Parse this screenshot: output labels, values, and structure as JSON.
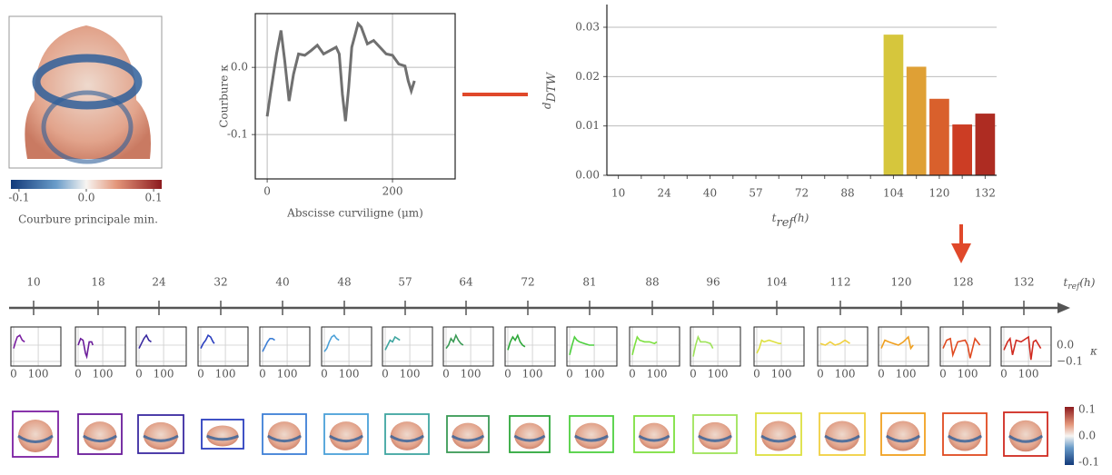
{
  "chart_data": [
    {
      "type": "colorbar",
      "label": "Courbure principale min.",
      "clim": [
        -0.112,
        0.112
      ],
      "ticks": [
        {
          "value": -0.1,
          "label": "-0.1"
        },
        {
          "value": 0,
          "label": "0.0"
        },
        {
          "value": 0.1,
          "label": "0.1"
        }
      ]
    },
    {
      "type": "line",
      "xlabel": "Abscisse curviligne (μm)",
      "ylabel": "Courbure κ",
      "color": "#707070",
      "xlim": [
        -19,
        300
      ],
      "ylim": [
        -0.166,
        0.08
      ],
      "xticks": [
        0,
        200
      ],
      "yticks": [
        {
          "value": 0,
          "label": "0.0"
        },
        {
          "value": -0.1,
          "label": "-0.1"
        }
      ],
      "grid": true,
      "x": [
        0,
        5,
        15,
        22,
        28,
        35,
        42,
        50,
        60,
        70,
        80,
        90,
        100,
        110,
        115,
        120,
        125,
        130,
        135,
        145,
        150,
        160,
        170,
        180,
        190,
        200,
        210,
        220,
        225,
        230,
        235
      ],
      "values": [
        -0.073,
        -0.04,
        0.02,
        0.055,
        0.01,
        -0.05,
        -0.01,
        0.02,
        0.018,
        0.025,
        0.033,
        0.02,
        0.025,
        0.03,
        0.02,
        -0.04,
        -0.08,
        -0.03,
        0.03,
        0.065,
        0.06,
        0.035,
        0.04,
        0.03,
        0.02,
        0.018,
        0.005,
        0.002,
        -0.02,
        -0.035,
        -0.02
      ]
    },
    {
      "type": "bar",
      "ylabel": "d",
      "ylabel_subscript": "DTW",
      "xlabel": "t",
      "xlabel_subscript": "ref",
      "xlabel_suffix": "(h)",
      "categories": [
        "10",
        null,
        "24",
        null,
        "40",
        null,
        "57",
        null,
        "72",
        null,
        "88",
        null,
        "104",
        null,
        "120",
        null,
        "132"
      ],
      "values": [
        0,
        0,
        0,
        0,
        0,
        0,
        0,
        0,
        0,
        0,
        0,
        0,
        0.0285,
        0.022,
        0.0155,
        0.0103,
        0.0125
      ],
      "colors": [
        "#ccc",
        "#ccc",
        "#ccc",
        "#ccc",
        "#ccc",
        "#ccc",
        "#ccc",
        "#ccc",
        "#ccc",
        "#ccc",
        "#ccc",
        "#ccc",
        "#d6c63c",
        "#dfa035",
        "#d9602c",
        "#cc3d24",
        "#ae2c22"
      ],
      "ylim": [
        0,
        0.0346
      ],
      "yticks": [
        {
          "value": 0,
          "label": "0.00"
        },
        {
          "value": 0.01,
          "label": "0.01"
        },
        {
          "value": 0.02,
          "label": "0.02"
        },
        {
          "value": 0.03,
          "label": "0.03"
        }
      ],
      "grid": true
    },
    {
      "type": "timeline",
      "categories": [
        "10",
        "18",
        "24",
        "32",
        "40",
        "48",
        "57",
        "64",
        "72",
        "81",
        "88",
        "96",
        "104",
        "112",
        "120",
        "128",
        "132"
      ],
      "xlabel": "t",
      "xlabel_subscript": "ref",
      "xlabel_suffix": "(h)"
    },
    {
      "type": "small_multiples",
      "xlim": [
        -11,
        192
      ],
      "ylim": [
        -0.128,
        0.111
      ],
      "xticks": [
        0,
        100
      ],
      "yticks": [
        {
          "value": 0,
          "label": "0.0"
        },
        {
          "value": -0.1,
          "label": "−0.1"
        }
      ],
      "ylabel": "κ",
      "series": [
        {
          "color": "#7b1fa2",
          "x": [
            0,
            8,
            15,
            25,
            35,
            45
          ],
          "values": [
            -0.02,
            0.02,
            0.05,
            0.06,
            0.03,
            0.02
          ]
        },
        {
          "color": "#6a1b9a",
          "x": [
            0,
            10,
            20,
            30,
            35,
            45,
            55,
            60
          ],
          "values": [
            0,
            0.04,
            0.03,
            -0.05,
            -0.07,
            0.02,
            0.02,
            0
          ]
        },
        {
          "color": "#3a2aa0",
          "x": [
            0,
            10,
            20,
            30,
            40,
            50
          ],
          "values": [
            -0.02,
            0.01,
            0.04,
            0.06,
            0.03,
            0.02
          ]
        },
        {
          "color": "#2b3fbf",
          "x": [
            0,
            10,
            20,
            30,
            40,
            50,
            55
          ],
          "values": [
            -0.02,
            0.01,
            0.03,
            0.06,
            0.05,
            0.02,
            0.01
          ]
        },
        {
          "color": "#3d7fd6",
          "x": [
            0,
            10,
            20,
            30,
            40,
            50
          ],
          "values": [
            -0.04,
            -0.01,
            0.02,
            0.04,
            0.04,
            0.03
          ]
        },
        {
          "color": "#4aa0d8",
          "x": [
            0,
            10,
            20,
            30,
            40,
            50,
            60
          ],
          "values": [
            -0.04,
            -0.02,
            0.02,
            0.05,
            0.06,
            0.04,
            0.03
          ]
        },
        {
          "color": "#3fa6a0",
          "x": [
            0,
            10,
            20,
            30,
            40,
            50,
            60
          ],
          "values": [
            -0.03,
            0,
            0.03,
            0.02,
            0.05,
            0.04,
            0.03
          ]
        },
        {
          "color": "#3a9a55",
          "x": [
            0,
            10,
            20,
            30,
            40,
            50,
            60,
            70
          ],
          "values": [
            -0.02,
            0,
            0.04,
            0.02,
            0.06,
            0.03,
            0.01,
            0
          ]
        },
        {
          "color": "#2ea83a",
          "x": [
            0,
            10,
            20,
            30,
            40,
            50,
            60,
            70
          ],
          "values": [
            -0.03,
            0.02,
            0.05,
            0.03,
            0.06,
            0.02,
            0,
            -0.01
          ]
        },
        {
          "color": "#4fd040",
          "x": [
            0,
            10,
            20,
            30,
            40,
            60,
            80,
            100
          ],
          "values": [
            -0.06,
            0,
            0.05,
            0.03,
            0.02,
            0.01,
            0,
            0
          ]
        },
        {
          "color": "#7de040",
          "x": [
            0,
            10,
            20,
            30,
            50,
            70,
            90,
            100
          ],
          "values": [
            -0.06,
            0,
            0.05,
            0.03,
            0.02,
            0.02,
            0.01,
            0.02
          ]
        },
        {
          "color": "#9ee35a",
          "x": [
            0,
            10,
            20,
            30,
            50,
            70,
            80
          ],
          "values": [
            -0.07,
            0,
            0.05,
            0.02,
            0.02,
            0.01,
            -0.02
          ]
        },
        {
          "color": "#dde040",
          "x": [
            0,
            10,
            20,
            30,
            50,
            70,
            90,
            100
          ],
          "values": [
            -0.05,
            -0.02,
            0.03,
            0.02,
            0.03,
            0.02,
            0.01,
            0.01
          ]
        },
        {
          "color": "#f0d040",
          "x": [
            0,
            20,
            40,
            60,
            80,
            100,
            120
          ],
          "values": [
            0.01,
            0,
            0.02,
            0,
            0.01,
            0.03,
            0.01
          ]
        },
        {
          "color": "#f0a020",
          "x": [
            0,
            15,
            30,
            50,
            70,
            90,
            110,
            120,
            130
          ],
          "values": [
            -0.02,
            0.03,
            0.02,
            0.01,
            0,
            0.02,
            0.05,
            -0.02,
            0
          ]
        },
        {
          "color": "#e04a20",
          "x": [
            0,
            15,
            30,
            40,
            60,
            90,
            100,
            110,
            130,
            150
          ],
          "values": [
            -0.02,
            0.03,
            0.04,
            -0.06,
            0.02,
            0.03,
            0,
            -0.08,
            0.04,
            0
          ]
        },
        {
          "color": "#d02a20",
          "x": [
            0,
            15,
            25,
            35,
            50,
            70,
            100,
            110,
            120,
            130,
            150
          ],
          "values": [
            -0.03,
            0.02,
            0.04,
            -0.06,
            0.03,
            0.02,
            0.05,
            -0.09,
            0.02,
            0.03,
            -0.02
          ]
        }
      ]
    },
    {
      "type": "colorbar_vertical",
      "clim": [
        -0.11,
        0.11
      ],
      "ticks": [
        {
          "value": 0.1,
          "label": "0.1"
        },
        {
          "value": 0,
          "label": "0.0"
        },
        {
          "value": -0.1,
          "label": "-0.1"
        }
      ]
    }
  ]
}
